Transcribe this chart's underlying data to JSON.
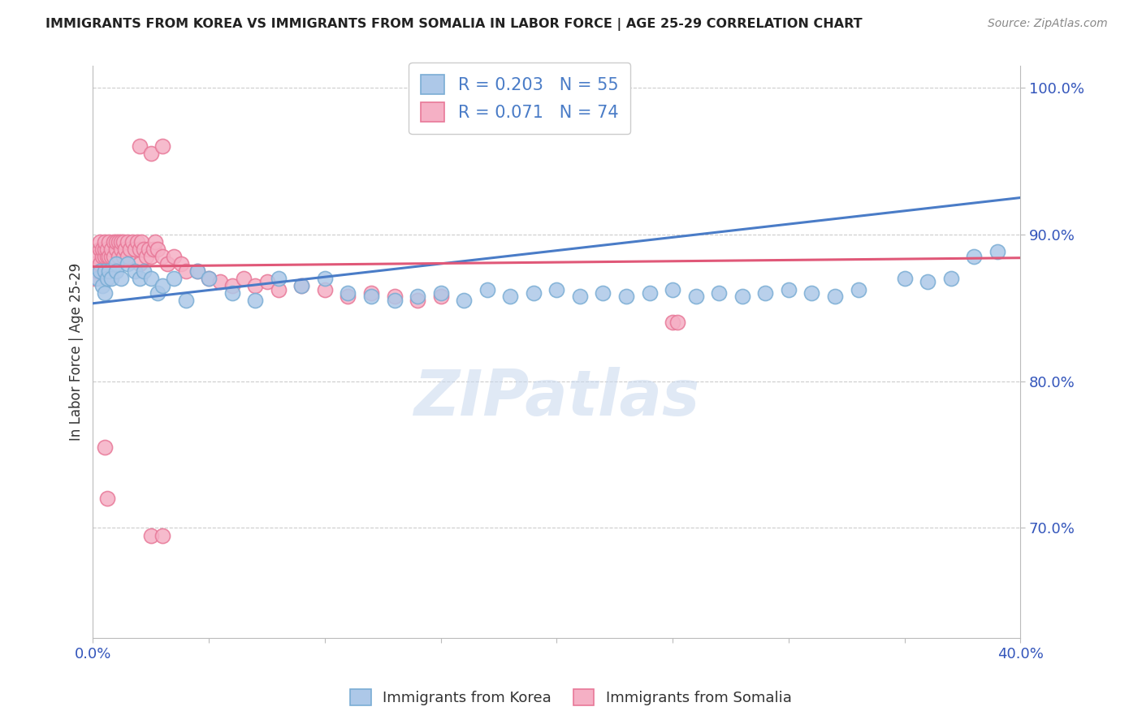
{
  "title": "IMMIGRANTS FROM KOREA VS IMMIGRANTS FROM SOMALIA IN LABOR FORCE | AGE 25-29 CORRELATION CHART",
  "source": "Source: ZipAtlas.com",
  "ylabel": "In Labor Force | Age 25-29",
  "xlim": [
    0.0,
    0.4
  ],
  "ylim": [
    0.625,
    1.015
  ],
  "xtick_positions": [
    0.0,
    0.05,
    0.1,
    0.15,
    0.2,
    0.25,
    0.3,
    0.35,
    0.4
  ],
  "xticklabels": [
    "0.0%",
    "",
    "",
    "",
    "",
    "",
    "",
    "",
    "40.0%"
  ],
  "ytick_positions": [
    0.7,
    0.8,
    0.9,
    1.0
  ],
  "yticklabels": [
    "70.0%",
    "80.0%",
    "90.0%",
    "100.0%"
  ],
  "korea_color": "#adc8e8",
  "korea_edge": "#7aadd4",
  "somalia_color": "#f5b0c5",
  "somalia_edge": "#e87898",
  "korea_R": 0.203,
  "korea_N": 55,
  "somalia_R": 0.071,
  "somalia_N": 74,
  "trend_korea_color": "#4a7cc7",
  "trend_somalia_color": "#e05878",
  "watermark": "ZIPatlas",
  "legend_color": "#4a7cc7",
  "korea_x": [
    0.002,
    0.003,
    0.004,
    0.005,
    0.005,
    0.006,
    0.007,
    0.008,
    0.01,
    0.01,
    0.012,
    0.015,
    0.018,
    0.02,
    0.022,
    0.025,
    0.028,
    0.03,
    0.035,
    0.04,
    0.045,
    0.05,
    0.06,
    0.07,
    0.08,
    0.09,
    0.1,
    0.11,
    0.12,
    0.13,
    0.14,
    0.15,
    0.16,
    0.17,
    0.18,
    0.19,
    0.2,
    0.21,
    0.22,
    0.23,
    0.24,
    0.25,
    0.26,
    0.27,
    0.28,
    0.29,
    0.3,
    0.31,
    0.32,
    0.33,
    0.35,
    0.36,
    0.37,
    0.38,
    0.39
  ],
  "korea_y": [
    0.87,
    0.875,
    0.865,
    0.86,
    0.875,
    0.87,
    0.875,
    0.87,
    0.88,
    0.875,
    0.87,
    0.88,
    0.875,
    0.87,
    0.875,
    0.87,
    0.86,
    0.865,
    0.87,
    0.855,
    0.875,
    0.87,
    0.86,
    0.855,
    0.87,
    0.865,
    0.87,
    0.86,
    0.858,
    0.855,
    0.858,
    0.86,
    0.855,
    0.862,
    0.858,
    0.86,
    0.862,
    0.858,
    0.86,
    0.858,
    0.86,
    0.862,
    0.858,
    0.86,
    0.858,
    0.86,
    0.862,
    0.86,
    0.858,
    0.862,
    0.87,
    0.868,
    0.87,
    0.885,
    0.888
  ],
  "somalia_x": [
    0.001,
    0.001,
    0.002,
    0.002,
    0.003,
    0.003,
    0.003,
    0.004,
    0.004,
    0.005,
    0.005,
    0.005,
    0.006,
    0.006,
    0.007,
    0.007,
    0.008,
    0.008,
    0.009,
    0.009,
    0.01,
    0.01,
    0.011,
    0.011,
    0.012,
    0.012,
    0.013,
    0.013,
    0.014,
    0.015,
    0.015,
    0.016,
    0.017,
    0.018,
    0.019,
    0.02,
    0.02,
    0.021,
    0.022,
    0.023,
    0.024,
    0.025,
    0.026,
    0.027,
    0.028,
    0.03,
    0.032,
    0.035,
    0.038,
    0.04,
    0.045,
    0.05,
    0.055,
    0.06,
    0.065,
    0.07,
    0.075,
    0.08,
    0.09,
    0.1,
    0.11,
    0.12,
    0.13,
    0.14,
    0.15,
    0.02,
    0.025,
    0.03,
    0.25,
    0.252,
    0.005,
    0.006,
    0.025,
    0.03
  ],
  "somalia_y": [
    0.87,
    0.88,
    0.875,
    0.885,
    0.88,
    0.89,
    0.895,
    0.885,
    0.89,
    0.885,
    0.89,
    0.895,
    0.885,
    0.89,
    0.885,
    0.895,
    0.885,
    0.89,
    0.895,
    0.885,
    0.89,
    0.895,
    0.885,
    0.895,
    0.89,
    0.895,
    0.885,
    0.895,
    0.89,
    0.895,
    0.885,
    0.89,
    0.895,
    0.89,
    0.895,
    0.88,
    0.89,
    0.895,
    0.89,
    0.885,
    0.89,
    0.885,
    0.89,
    0.895,
    0.89,
    0.885,
    0.88,
    0.885,
    0.88,
    0.875,
    0.875,
    0.87,
    0.868,
    0.865,
    0.87,
    0.865,
    0.868,
    0.862,
    0.865,
    0.862,
    0.858,
    0.86,
    0.858,
    0.855,
    0.858,
    0.96,
    0.955,
    0.96,
    0.84,
    0.84,
    0.755,
    0.72,
    0.695,
    0.695
  ],
  "korea_trend_x0": 0.0,
  "korea_trend_y0": 0.853,
  "korea_trend_x1": 0.4,
  "korea_trend_y1": 0.925,
  "somalia_trend_x0": 0.0,
  "somalia_trend_y0": 0.878,
  "somalia_trend_x1": 0.4,
  "somalia_trend_y1": 0.884
}
